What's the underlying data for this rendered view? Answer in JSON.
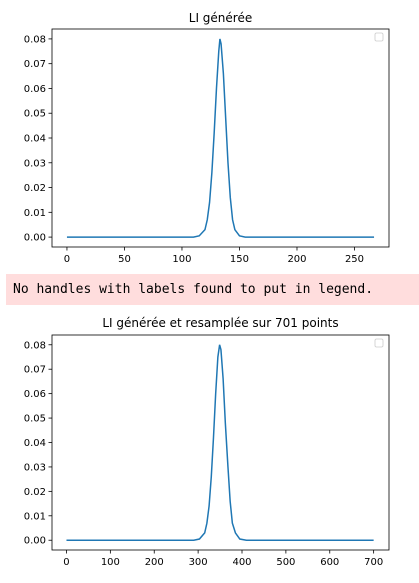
{
  "warning_text": "No handles with labels found to put in legend.",
  "colors": {
    "line": "#1f77b4",
    "warning_bg": "#ffdddd"
  },
  "chart_data": [
    {
      "type": "line",
      "title": "LI générée",
      "xlim": [
        -13,
        280
      ],
      "ylim": [
        -0.004,
        0.084
      ],
      "xticks": [
        0,
        50,
        100,
        150,
        200,
        250
      ],
      "yticks": [
        0.0,
        0.01,
        0.02,
        0.03,
        0.04,
        0.05,
        0.06,
        0.07,
        0.08
      ],
      "ytick_labels": [
        "0.00",
        "0.01",
        "0.02",
        "0.03",
        "0.04",
        "0.05",
        "0.06",
        "0.07",
        "0.08"
      ],
      "legend": "top-right (empty)",
      "grid": false,
      "series": [
        {
          "x": [
            0,
            110,
            115,
            120,
            122,
            124,
            126,
            128,
            130,
            132,
            133,
            134,
            136,
            138,
            140,
            142,
            144,
            146,
            150,
            155,
            267
          ],
          "y": [
            0,
            0,
            0.0005,
            0.003,
            0.007,
            0.014,
            0.026,
            0.042,
            0.06,
            0.075,
            0.08,
            0.078,
            0.066,
            0.048,
            0.03,
            0.016,
            0.007,
            0.003,
            0.0005,
            0,
            0
          ]
        }
      ]
    },
    {
      "type": "line",
      "title": "LI générée et resamplée sur 701 points",
      "xlim": [
        -33,
        735
      ],
      "ylim": [
        -0.004,
        0.084
      ],
      "xticks": [
        0,
        100,
        200,
        300,
        400,
        500,
        600,
        700
      ],
      "yticks": [
        0.0,
        0.01,
        0.02,
        0.03,
        0.04,
        0.05,
        0.06,
        0.07,
        0.08
      ],
      "ytick_labels": [
        "0.00",
        "0.01",
        "0.02",
        "0.03",
        "0.04",
        "0.05",
        "0.06",
        "0.07",
        "0.08"
      ],
      "legend": "top-right (empty)",
      "grid": false,
      "series": [
        {
          "x": [
            0,
            290,
            303,
            315,
            320,
            325,
            330,
            335,
            340,
            345,
            349,
            352,
            357,
            362,
            368,
            373,
            378,
            385,
            395,
            410,
            700
          ],
          "y": [
            0,
            0,
            0.0005,
            0.003,
            0.007,
            0.014,
            0.026,
            0.042,
            0.06,
            0.075,
            0.08,
            0.078,
            0.066,
            0.048,
            0.03,
            0.016,
            0.007,
            0.003,
            0.0005,
            0,
            0
          ]
        }
      ]
    }
  ]
}
